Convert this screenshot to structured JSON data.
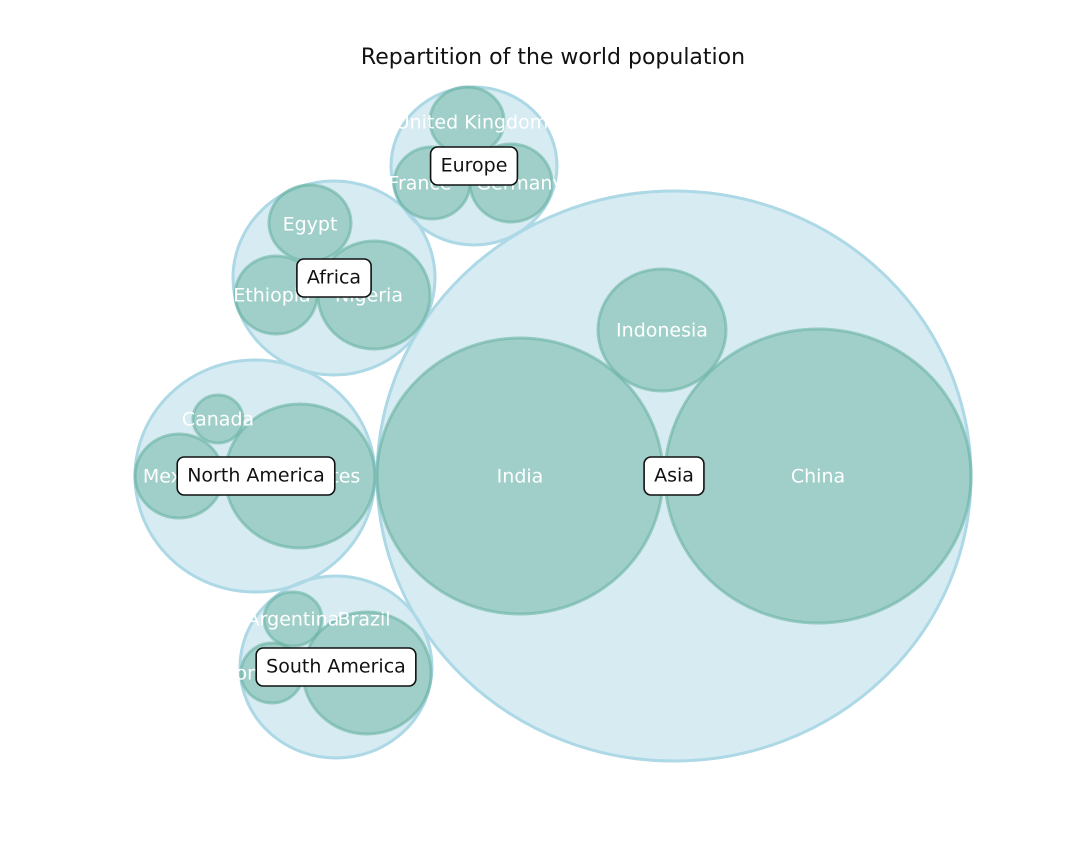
{
  "chart_data": {
    "type": "circle_packing",
    "title": "Repartition of the world population",
    "colors": {
      "continent_fill": "#add8e6",
      "country_fill": "#69b3a2",
      "label_box_border": "#111111",
      "label_box_fill": "#ffffff"
    },
    "groups": [
      {
        "name": "Asia",
        "children": [
          {
            "name": "China"
          },
          {
            "name": "India"
          },
          {
            "name": "Indonesia"
          }
        ]
      },
      {
        "name": "North America",
        "children": [
          {
            "name": "United States"
          },
          {
            "name": "Mexico"
          },
          {
            "name": "Canada"
          }
        ]
      },
      {
        "name": "Africa",
        "children": [
          {
            "name": "Nigeria"
          },
          {
            "name": "Ethiopia"
          },
          {
            "name": "Egypt"
          }
        ]
      },
      {
        "name": "South America",
        "children": [
          {
            "name": "Brazil"
          },
          {
            "name": "Colombia"
          },
          {
            "name": "Argentina"
          }
        ]
      },
      {
        "name": "Europe",
        "children": [
          {
            "name": "Germany"
          },
          {
            "name": "France"
          },
          {
            "name": "United Kingdom"
          }
        ]
      }
    ]
  }
}
